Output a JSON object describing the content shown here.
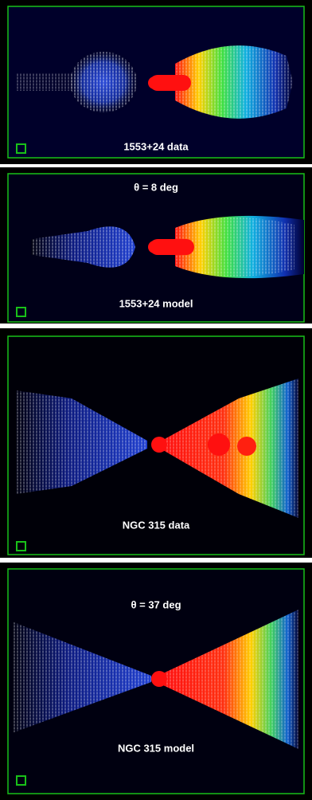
{
  "panels": [
    {
      "label": "1553+24 data"
    },
    {
      "angle": "θ = 8 deg",
      "label": "1553+24 model"
    },
    {
      "label": "NGC 315 data"
    },
    {
      "angle": "θ = 37 deg",
      "label": "NGC 315 model"
    }
  ]
}
